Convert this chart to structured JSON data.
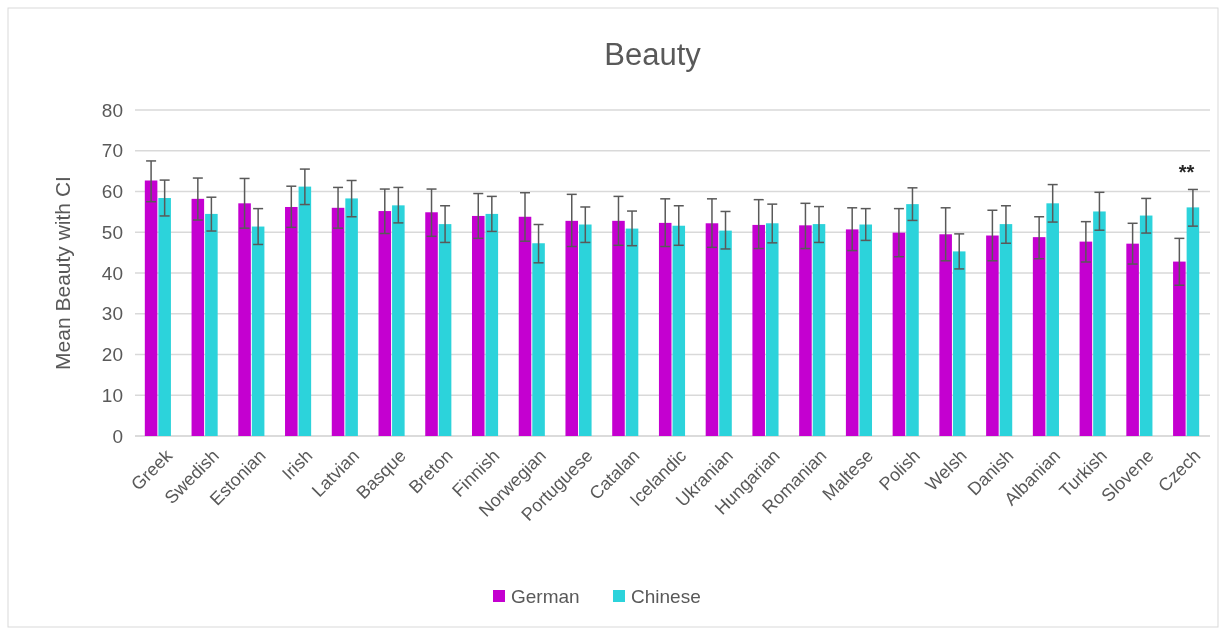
{
  "chart_data": {
    "type": "bar",
    "title": "Beauty",
    "ylabel": "Mean Beauty with CI",
    "categories": [
      "Greek",
      "Swedish",
      "Estonian",
      "Irish",
      "Latvian",
      "Basque",
      "Breton",
      "Finnish",
      "Norwegian",
      "Portuguese",
      "Catalan",
      "Icelandic",
      "Ukranian",
      "Hungarian",
      "Romanian",
      "Maltese",
      "Polish",
      "Welsh",
      "Danish",
      "Albanian",
      "Turkish",
      "Slovene",
      "Czech"
    ],
    "series": [
      {
        "name": "German",
        "color": "#c400d0",
        "values": [
          62.7,
          58.2,
          57.1,
          56.2,
          56.0,
          55.2,
          54.9,
          54.0,
          53.8,
          52.8,
          52.8,
          52.3,
          52.2,
          51.8,
          51.7,
          50.7,
          49.9,
          49.5,
          49.2,
          48.8,
          47.7,
          47.2,
          42.8
        ],
        "errors": [
          [
            57.5,
            67.5
          ],
          [
            53,
            63.3
          ],
          [
            51,
            63.2
          ],
          [
            51.2,
            61.3
          ],
          [
            51,
            61
          ],
          [
            49.7,
            60.6
          ],
          [
            49,
            60.6
          ],
          [
            48.5,
            59.5
          ],
          [
            47.8,
            59.7
          ],
          [
            46.5,
            59.3
          ],
          [
            46.8,
            58.8
          ],
          [
            46.5,
            58.2
          ],
          [
            46.3,
            58.2
          ],
          [
            46,
            58
          ],
          [
            46,
            57.1
          ],
          [
            45.5,
            56
          ],
          [
            44,
            55.8
          ],
          [
            43,
            56
          ],
          [
            43,
            55.4
          ],
          [
            43.5,
            53.8
          ],
          [
            42.7,
            52.6
          ],
          [
            42.2,
            52.2
          ],
          [
            37,
            48.5
          ]
        ]
      },
      {
        "name": "Chinese",
        "color": "#2cd3db",
        "values": [
          58.4,
          54.5,
          51.4,
          61.2,
          58.3,
          56.6,
          52.0,
          54.5,
          47.3,
          51.9,
          50.9,
          51.6,
          50.4,
          52.2,
          52.0,
          51.9,
          56.9,
          45.3,
          52.0,
          57.1,
          55.1,
          54.1,
          56.1
        ],
        "errors": [
          [
            54,
            62.8
          ],
          [
            50.3,
            58.6
          ],
          [
            47,
            55.8
          ],
          [
            56.8,
            65.5
          ],
          [
            53.8,
            62.7
          ],
          [
            52.3,
            61
          ],
          [
            47.5,
            56.5
          ],
          [
            50.2,
            58.8
          ],
          [
            42.5,
            51.9
          ],
          [
            47.5,
            56.2
          ],
          [
            46.7,
            55.2
          ],
          [
            46.8,
            56.5
          ],
          [
            45.9,
            55.1
          ],
          [
            47.4,
            56.9
          ],
          [
            47.5,
            56.3
          ],
          [
            48,
            55.8
          ],
          [
            52.9,
            60.9
          ],
          [
            41,
            49.6
          ],
          [
            47.3,
            56.5
          ],
          [
            52.5,
            61.7
          ],
          [
            50.5,
            59.8
          ],
          [
            49.8,
            58.3
          ],
          [
            51.5,
            60.5
          ]
        ]
      }
    ],
    "ylim": [
      0,
      80
    ],
    "yticks": [
      0,
      10,
      20,
      30,
      40,
      50,
      60,
      70,
      80
    ],
    "grid": "y",
    "legend": "bottom",
    "annotations": [
      {
        "text": "**",
        "x": "Czech",
        "y": 56.1
      }
    ]
  }
}
